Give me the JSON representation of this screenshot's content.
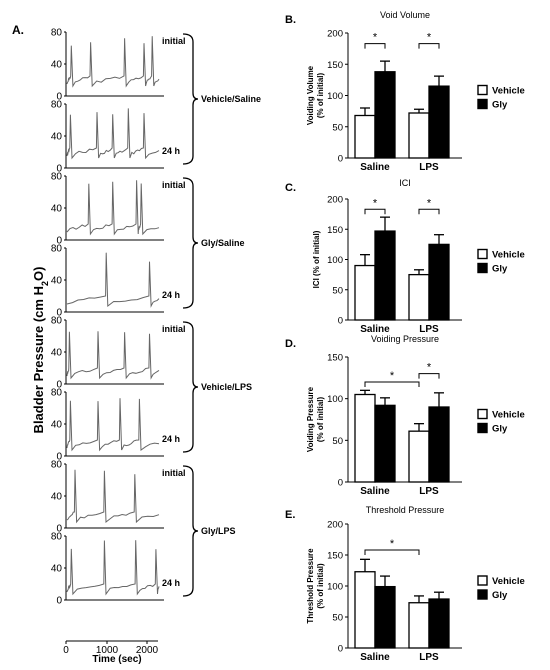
{
  "figure": {
    "panel_a": {
      "label": "A.",
      "ylabel": "Bladder Pressure (cm H",
      "ylabel_sub": "2",
      "ylabel_end": "O)",
      "xlabel": "Time (sec)",
      "x_ticks": [
        "0",
        "1000",
        "2000"
      ],
      "groups": [
        {
          "name": "Vehicle/Saline",
          "traces": [
            {
              "label": "initial",
              "ticks": [
                "80",
                "40",
                "0"
              ],
              "events": [
                0.04,
                0.25,
                0.62,
                0.83,
                0.92
              ]
            },
            {
              "label": "24 h",
              "ticks": [
                "80",
                "40",
                "0"
              ],
              "events": [
                0.03,
                0.32,
                0.49,
                0.66,
                0.83
              ]
            }
          ]
        },
        {
          "name": "Gly/Saline",
          "traces": [
            {
              "label": "initial",
              "ticks": [
                "80",
                "40",
                "0"
              ],
              "events": [
                0.23,
                0.49,
                0.75,
                0.8
              ]
            },
            {
              "label": "24 h",
              "ticks": [
                "80",
                "40",
                "0"
              ],
              "events": [
                0.42,
                0.89
              ]
            }
          ]
        },
        {
          "name": "Vehicle/LPS",
          "traces": [
            {
              "label": "initial",
              "ticks": [
                "80",
                "40",
                "0"
              ],
              "events": [
                0.02,
                0.33,
                0.62,
                0.89
              ]
            },
            {
              "label": "24 h",
              "ticks": [
                "80",
                "40",
                "0"
              ],
              "events": [
                0.03,
                0.33,
                0.57,
                0.78
              ]
            }
          ]
        },
        {
          "name": "Gly/LPS",
          "traces": [
            {
              "label": "initial",
              "ticks": [
                "80",
                "40",
                "0"
              ],
              "events": [
                0.08,
                0.4,
                0.73
              ]
            },
            {
              "label": "24 h",
              "ticks": [
                "80",
                "40",
                "0"
              ],
              "events": [
                0.04,
                0.4,
                0.74,
                0.96
              ]
            }
          ]
        }
      ]
    }
  },
  "chart_data": [
    {
      "panel": "B.",
      "type": "bar",
      "title": "Void Volume",
      "ylabel": "Voiding Volume (% of initial)",
      "ylabel_lines": [
        "Voiding Volume",
        "(% of initial)"
      ],
      "xlabel": "",
      "categories": [
        "Saline",
        "LPS"
      ],
      "ylim": [
        0,
        200
      ],
      "yticks": [
        0,
        50,
        100,
        150,
        200
      ],
      "series": [
        {
          "name": "Vehicle",
          "color": "#ffffff",
          "values": [
            68,
            72
          ],
          "errors": [
            12,
            6
          ]
        },
        {
          "name": "Gly",
          "color": "#000000",
          "values": [
            138,
            115
          ],
          "errors": [
            17,
            16
          ]
        }
      ],
      "significance": [
        {
          "label": "*",
          "from": [
            0,
            0
          ],
          "to": [
            0,
            1
          ],
          "y": 183
        },
        {
          "label": "*",
          "from": [
            1,
            0
          ],
          "to": [
            1,
            1
          ],
          "y": 183
        }
      ],
      "legend_position": "right"
    },
    {
      "panel": "C.",
      "type": "bar",
      "title": "ICI",
      "ylabel": "ICI (% of initial)",
      "ylabel_lines": [
        "ICI (% of initial)"
      ],
      "xlabel": "",
      "categories": [
        "Saline",
        "LPS"
      ],
      "ylim": [
        0,
        200
      ],
      "yticks": [
        0,
        50,
        100,
        150,
        200
      ],
      "series": [
        {
          "name": "Vehicle",
          "color": "#ffffff",
          "values": [
            90,
            75
          ],
          "errors": [
            18,
            8
          ]
        },
        {
          "name": "Gly",
          "color": "#000000",
          "values": [
            147,
            125
          ],
          "errors": [
            23,
            16
          ]
        }
      ],
      "significance": [
        {
          "label": "*",
          "from": [
            0,
            0
          ],
          "to": [
            0,
            1
          ],
          "y": 183
        },
        {
          "label": "*",
          "from": [
            1,
            0
          ],
          "to": [
            1,
            1
          ],
          "y": 183
        }
      ],
      "legend_position": "right"
    },
    {
      "panel": "D.",
      "type": "bar",
      "title": "Voiding Pressure",
      "ylabel": "Voiding Pressure (% of initial)",
      "ylabel_lines": [
        "Voiding Pressure",
        "(% of initial)"
      ],
      "xlabel": "",
      "categories": [
        "Saline",
        "LPS"
      ],
      "ylim": [
        0,
        150
      ],
      "yticks": [
        0,
        50,
        100,
        150
      ],
      "series": [
        {
          "name": "Vehicle",
          "color": "#ffffff",
          "values": [
            105,
            61
          ],
          "errors": [
            5,
            9
          ]
        },
        {
          "name": "Gly",
          "color": "#000000",
          "values": [
            92,
            90
          ],
          "errors": [
            9,
            17
          ]
        }
      ],
      "significance": [
        {
          "label": "*",
          "from": [
            0,
            0
          ],
          "to": [
            1,
            0
          ],
          "y": 120
        },
        {
          "label": "*",
          "from": [
            1,
            0
          ],
          "to": [
            1,
            1
          ],
          "y": 130
        }
      ],
      "legend_position": "right"
    },
    {
      "panel": "E.",
      "type": "bar",
      "title": "Threshold Pressure",
      "ylabel": "Threshold Pressure (% of initial)",
      "ylabel_lines": [
        "Threshold Pressure",
        "(% of initial)"
      ],
      "xlabel": "",
      "categories": [
        "Saline",
        "LPS"
      ],
      "ylim": [
        0,
        200
      ],
      "yticks": [
        0,
        50,
        100,
        150,
        200
      ],
      "series": [
        {
          "name": "Vehicle",
          "color": "#ffffff",
          "values": [
            123,
            73
          ],
          "errors": [
            20,
            11
          ]
        },
        {
          "name": "Gly",
          "color": "#000000",
          "values": [
            99,
            79
          ],
          "errors": [
            17,
            11
          ]
        }
      ],
      "significance": [
        {
          "label": "*",
          "from": [
            0,
            0
          ],
          "to": [
            1,
            0
          ],
          "y": 158
        }
      ],
      "legend_position": "right"
    }
  ]
}
